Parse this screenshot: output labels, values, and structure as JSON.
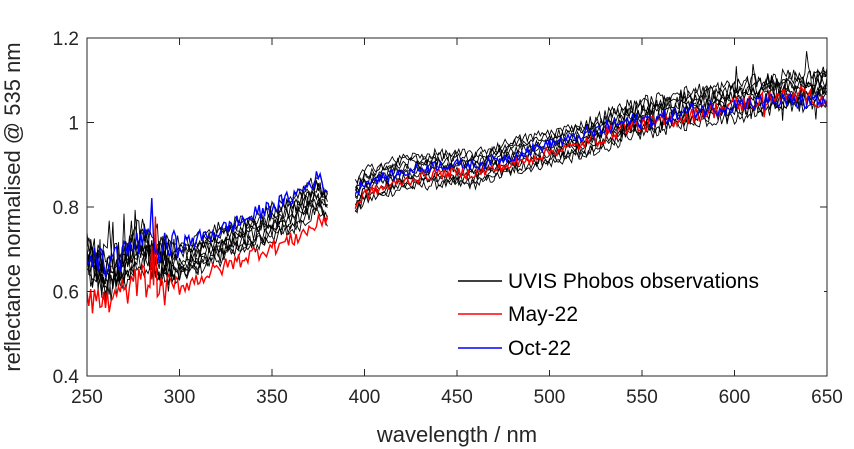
{
  "chart_data": {
    "type": "line",
    "title": "",
    "xlabel": "wavelength / nm",
    "ylabel": "reflectance normalised @ 535 nm",
    "xlim": [
      250,
      650
    ],
    "ylim": [
      0.4,
      1.2
    ],
    "x_ticks": [
      "250",
      "300",
      "350",
      "400",
      "450",
      "500",
      "550",
      "600",
      "650"
    ],
    "y_ticks": [
      "0.4",
      "0.6",
      "0.8",
      "1",
      "1.2"
    ],
    "gap": [
      380,
      395
    ],
    "grid": false,
    "legend": {
      "position": "bottom-right"
    },
    "series": [
      {
        "name": "UVIS Phobos observations",
        "color": "#000000",
        "count": 10,
        "x": [
          250,
          260,
          270,
          280,
          290,
          300,
          320,
          340,
          360,
          375,
          380,
          395,
          400,
          420,
          440,
          460,
          480,
          500,
          520,
          540,
          560,
          580,
          600,
          620,
          640,
          650
        ],
        "values": [
          0.68,
          0.64,
          0.66,
          0.71,
          0.67,
          0.67,
          0.71,
          0.74,
          0.78,
          0.83,
          0.8,
          0.82,
          0.85,
          0.88,
          0.89,
          0.89,
          0.92,
          0.94,
          0.96,
          1.0,
          1.02,
          1.04,
          1.05,
          1.07,
          1.08,
          1.09
        ]
      },
      {
        "name": "May-22",
        "color": "#ff0000",
        "x": [
          250,
          260,
          270,
          280,
          290,
          300,
          320,
          340,
          360,
          375,
          380,
          395,
          400,
          420,
          440,
          460,
          480,
          500,
          520,
          540,
          560,
          580,
          600,
          620,
          640,
          650
        ],
        "values": [
          0.6,
          0.57,
          0.6,
          0.63,
          0.6,
          0.61,
          0.65,
          0.69,
          0.72,
          0.76,
          0.78,
          0.8,
          0.83,
          0.86,
          0.88,
          0.88,
          0.9,
          0.93,
          0.95,
          0.99,
          1.0,
          1.02,
          1.04,
          1.06,
          1.06,
          1.05
        ]
      },
      {
        "name": "Oct-22",
        "color": "#0000ff",
        "x": [
          250,
          260,
          270,
          280,
          290,
          300,
          320,
          340,
          360,
          375,
          380,
          395,
          400,
          420,
          440,
          460,
          480,
          500,
          520,
          540,
          560,
          580,
          600,
          620,
          640,
          650
        ],
        "values": [
          0.68,
          0.66,
          0.69,
          0.72,
          0.7,
          0.71,
          0.74,
          0.78,
          0.82,
          0.87,
          0.84,
          0.83,
          0.86,
          0.88,
          0.9,
          0.9,
          0.92,
          0.95,
          0.97,
          1.0,
          1.01,
          1.03,
          1.04,
          1.05,
          1.05,
          1.05
        ]
      }
    ]
  }
}
